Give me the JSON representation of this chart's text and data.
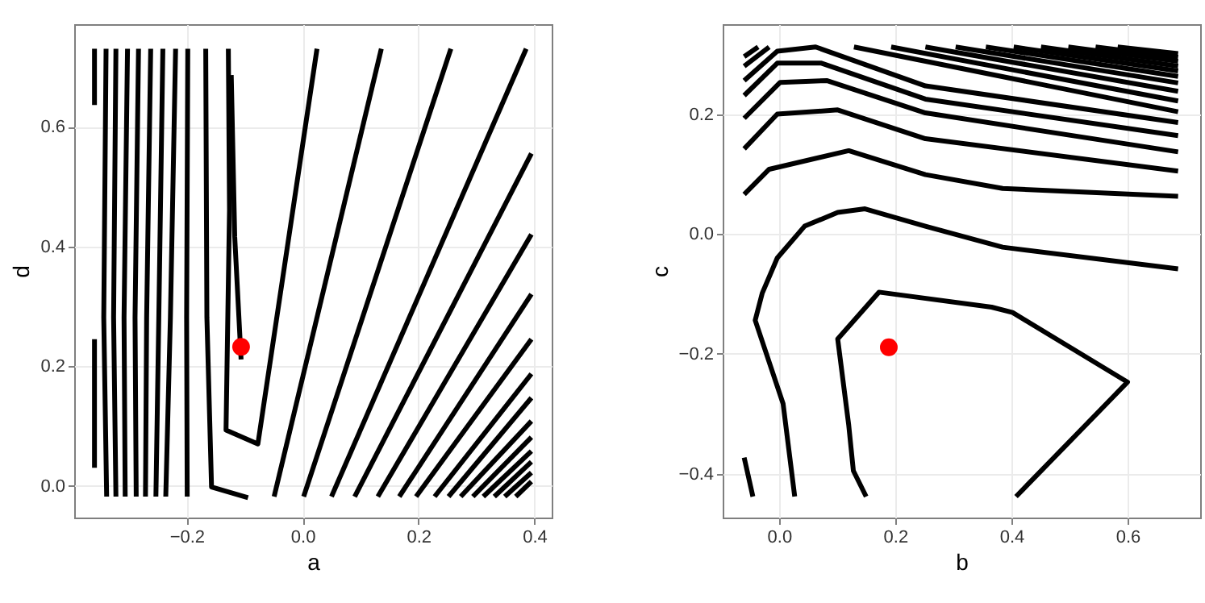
{
  "chart_data": [
    {
      "type": "line",
      "xlabel": "a",
      "ylabel": "d",
      "xlim": [
        -0.394,
        0.43
      ],
      "ylim": [
        -0.053,
        0.771
      ],
      "grid": true,
      "xticks": [
        {
          "value": -0.2,
          "label": "−0.2"
        },
        {
          "value": 0,
          "label": "0.0"
        },
        {
          "value": 0.2,
          "label": "0.2"
        },
        {
          "value": 0.4,
          "label": "0.4"
        }
      ],
      "yticks": [
        {
          "value": 0,
          "label": "0.0"
        },
        {
          "value": 0.2,
          "label": "0.2"
        },
        {
          "value": 0.4,
          "label": "0.4"
        },
        {
          "value": 0.6,
          "label": "0.6"
        }
      ],
      "series": [
        {
          "color": "#000000",
          "x": [
            -0.359,
            -0.359
          ],
          "values": [
            0.636,
            0.73
          ]
        },
        {
          "color": "#000000",
          "x": [
            -0.359,
            -0.359
          ],
          "values": [
            0.245,
            0.03
          ]
        },
        {
          "color": "#000000",
          "x": [
            -0.339,
            -0.343,
            -0.338
          ],
          "values": [
            0.73,
            0.281,
            -0.018
          ]
        },
        {
          "color": "#000000",
          "x": [
            -0.322,
            -0.326,
            -0.322
          ],
          "values": [
            0.73,
            0.281,
            -0.018
          ]
        },
        {
          "color": "#000000",
          "x": [
            -0.302,
            -0.308,
            -0.306
          ],
          "values": [
            0.73,
            0.281,
            -0.018
          ]
        },
        {
          "color": "#000000",
          "x": [
            -0.283,
            -0.289,
            -0.287
          ],
          "values": [
            0.73,
            0.281,
            -0.018
          ]
        },
        {
          "color": "#000000",
          "x": [
            -0.262,
            -0.269,
            -0.271
          ],
          "values": [
            0.73,
            0.281,
            -0.018
          ]
        },
        {
          "color": "#000000",
          "x": [
            -0.241,
            -0.248,
            -0.253
          ],
          "values": [
            0.73,
            0.281,
            -0.018
          ]
        },
        {
          "color": "#000000",
          "x": [
            -0.219,
            -0.228,
            -0.236
          ],
          "values": [
            0.73,
            0.281,
            -0.018
          ]
        },
        {
          "color": "#000000",
          "x": [
            -0.198,
            -0.2,
            -0.199
          ],
          "values": [
            0.73,
            0.281,
            -0.018
          ]
        },
        {
          "color": "#000000",
          "x": [
            -0.167,
            -0.165,
            -0.157,
            -0.094
          ],
          "values": [
            0.73,
            0.281,
            -0.002,
            -0.02
          ]
        },
        {
          "color": "#000000",
          "x": [
            -0.128,
            -0.126,
            -0.132,
            -0.077,
            0.025
          ],
          "values": [
            0.73,
            0.461,
            0.093,
            0.07,
            0.73
          ]
        },
        {
          "color": "#000000",
          "x": [
            -0.123,
            -0.117,
            -0.106
          ],
          "values": [
            0.686,
            0.416,
            0.211
          ]
        },
        {
          "color": "#000000",
          "x": [
            -0.049,
            0.136
          ],
          "values": [
            -0.018,
            0.73
          ]
        },
        {
          "color": "#000000",
          "x": [
            0.002,
            0.256
          ],
          "values": [
            -0.018,
            0.73
          ]
        },
        {
          "color": "#000000",
          "x": [
            0.05,
            0.386
          ],
          "values": [
            -0.018,
            0.73
          ]
        },
        {
          "color": "#000000",
          "x": [
            0.09,
            0.395
          ],
          "values": [
            -0.018,
            0.555
          ]
        },
        {
          "color": "#000000",
          "x": [
            0.13,
            0.395
          ],
          "values": [
            -0.018,
            0.42
          ]
        },
        {
          "color": "#000000",
          "x": [
            0.167,
            0.395
          ],
          "values": [
            -0.018,
            0.32
          ]
        },
        {
          "color": "#000000",
          "x": [
            0.196,
            0.395
          ],
          "values": [
            -0.018,
            0.245
          ]
        },
        {
          "color": "#000000",
          "x": [
            0.228,
            0.395
          ],
          "values": [
            -0.018,
            0.187
          ]
        },
        {
          "color": "#000000",
          "x": [
            0.252,
            0.395
          ],
          "values": [
            -0.018,
            0.147
          ]
        },
        {
          "color": "#000000",
          "x": [
            0.273,
            0.395
          ],
          "values": [
            -0.018,
            0.108
          ]
        },
        {
          "color": "#000000",
          "x": [
            0.294,
            0.395
          ],
          "values": [
            -0.018,
            0.081
          ]
        },
        {
          "color": "#000000",
          "x": [
            0.312,
            0.395
          ],
          "values": [
            -0.018,
            0.058
          ]
        },
        {
          "color": "#000000",
          "x": [
            0.331,
            0.395
          ],
          "values": [
            -0.018,
            0.04
          ]
        },
        {
          "color": "#000000",
          "x": [
            0.349,
            0.395
          ],
          "values": [
            -0.018,
            0.022
          ]
        },
        {
          "color": "#000000",
          "x": [
            0.368,
            0.395
          ],
          "values": [
            -0.018,
            0.007
          ]
        },
        {
          "type": "scatter",
          "color": "#ff0000",
          "x": [
            -0.106
          ],
          "values": [
            0.232
          ]
        }
      ]
    },
    {
      "type": "line",
      "xlabel": "b",
      "ylabel": "c",
      "xlim": [
        -0.097,
        0.725
      ],
      "ylim": [
        -0.473,
        0.35
      ],
      "grid": true,
      "xticks": [
        {
          "value": 0,
          "label": "0.0"
        },
        {
          "value": 0.2,
          "label": "0.2"
        },
        {
          "value": 0.4,
          "label": "0.4"
        },
        {
          "value": 0.6,
          "label": "0.6"
        }
      ],
      "yticks": [
        {
          "value": -0.4,
          "label": "−0.4"
        },
        {
          "value": -0.2,
          "label": "−0.2"
        },
        {
          "value": 0,
          "label": "0.0"
        },
        {
          "value": 0.2,
          "label": "0.2"
        }
      ],
      "series": [
        {
          "color": "#000000",
          "x": [
            0.15,
            0.128,
            0.12,
            0.101,
            0.172,
            0.366,
            0.402,
            0.6,
            0.408
          ],
          "values": [
            -0.438,
            -0.395,
            -0.319,
            -0.175,
            -0.097,
            -0.122,
            -0.131,
            -0.247,
            -0.438
          ]
        },
        {
          "color": "#000000",
          "x": [
            0.027,
            0.007,
            -0.041,
            -0.029,
            -0.003,
            0.044,
            0.101,
            0.148,
            0.252,
            0.385,
            0.687
          ],
          "values": [
            -0.438,
            -0.283,
            -0.144,
            -0.099,
            -0.04,
            0.013,
            0.036,
            0.042,
            0.013,
            -0.022,
            -0.058
          ]
        },
        {
          "color": "#000000",
          "x": [
            -0.06,
            -0.045
          ],
          "values": [
            -0.373,
            -0.438
          ]
        },
        {
          "color": "#000000",
          "x": [
            -0.06,
            -0.017,
            0.12,
            0.252,
            0.385,
            0.687
          ],
          "values": [
            0.066,
            0.108,
            0.139,
            0.099,
            0.076,
            0.063
          ]
        },
        {
          "color": "#000000",
          "x": [
            -0.06,
            -0.003,
            0.101,
            0.252,
            0.687
          ],
          "values": [
            0.142,
            0.2,
            0.207,
            0.159,
            0.105
          ]
        },
        {
          "color": "#000000",
          "x": [
            -0.06,
            0.002,
            0.082,
            0.252,
            0.687
          ],
          "values": [
            0.193,
            0.253,
            0.256,
            0.202,
            0.137
          ]
        },
        {
          "color": "#000000",
          "x": [
            -0.06,
            -0.003,
            0.073,
            0.252,
            0.687
          ],
          "values": [
            0.231,
            0.285,
            0.285,
            0.225,
            0.164
          ]
        },
        {
          "color": "#000000",
          "x": [
            -0.06,
            -0.003,
            0.063,
            0.252,
            0.687
          ],
          "values": [
            0.256,
            0.305,
            0.312,
            0.247,
            0.186
          ]
        },
        {
          "color": "#000000",
          "x": [
            -0.06,
            -0.017
          ],
          "values": [
            0.28,
            0.312
          ]
        },
        {
          "color": "#000000",
          "x": [
            -0.06,
            -0.036
          ],
          "values": [
            0.296,
            0.312
          ]
        },
        {
          "color": "#000000",
          "x": [
            0.129,
            0.687
          ],
          "values": [
            0.312,
            0.204
          ]
        },
        {
          "color": "#000000",
          "x": [
            0.193,
            0.687
          ],
          "values": [
            0.312,
            0.222
          ]
        },
        {
          "color": "#000000",
          "x": [
            0.252,
            0.687
          ],
          "values": [
            0.312,
            0.238
          ]
        },
        {
          "color": "#000000",
          "x": [
            0.304,
            0.687
          ],
          "values": [
            0.312,
            0.252
          ]
        },
        {
          "color": "#000000",
          "x": [
            0.356,
            0.687
          ],
          "values": [
            0.312,
            0.263
          ]
        },
        {
          "color": "#000000",
          "x": [
            0.404,
            0.687
          ],
          "values": [
            0.312,
            0.272
          ]
        },
        {
          "color": "#000000",
          "x": [
            0.451,
            0.687
          ],
          "values": [
            0.312,
            0.28
          ]
        },
        {
          "color": "#000000",
          "x": [
            0.498,
            0.687
          ],
          "values": [
            0.312,
            0.288
          ]
        },
        {
          "color": "#000000",
          "x": [
            0.545,
            0.687
          ],
          "values": [
            0.312,
            0.295
          ]
        },
        {
          "color": "#000000",
          "x": [
            0.583,
            0.687
          ],
          "values": [
            0.312,
            0.301
          ]
        },
        {
          "type": "scatter",
          "color": "#ff0000",
          "x": [
            0.189
          ],
          "values": [
            -0.189
          ]
        }
      ]
    }
  ]
}
